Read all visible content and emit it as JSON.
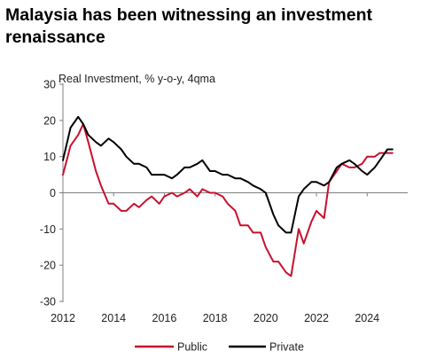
{
  "title": "Malaysia has been witnessing an investment renaissance",
  "chart_data": {
    "type": "line",
    "ylabel": "Real Investment,  % y-o-y, 4qma",
    "ylim": [
      -30,
      30
    ],
    "yticks": [
      30,
      20,
      10,
      0,
      -10,
      -20,
      -30
    ],
    "xlim": [
      2012,
      2025.6
    ],
    "xticks": [
      2012,
      2014,
      2016,
      2018,
      2020,
      2022,
      2024
    ],
    "grid": false,
    "legend_position": "bottom-center",
    "series": [
      {
        "name": "Public",
        "color": "#C8102E",
        "x": [
          2012.0,
          2012.3,
          2012.6,
          2012.8,
          2013.0,
          2013.3,
          2013.5,
          2013.8,
          2014.0,
          2014.3,
          2014.5,
          2014.8,
          2015.0,
          2015.3,
          2015.5,
          2015.8,
          2016.0,
          2016.3,
          2016.5,
          2016.8,
          2017.0,
          2017.3,
          2017.5,
          2017.8,
          2018.0,
          2018.3,
          2018.5,
          2018.8,
          2019.0,
          2019.3,
          2019.5,
          2019.8,
          2020.0,
          2020.3,
          2020.5,
          2020.8,
          2021.0,
          2021.3,
          2021.5,
          2021.8,
          2022.0,
          2022.3,
          2022.5,
          2022.8,
          2023.0,
          2023.3,
          2023.5,
          2023.8,
          2024.0,
          2024.3,
          2024.5,
          2024.8,
          2025.0
        ],
        "values": [
          5,
          13,
          16,
          19,
          14,
          6,
          2,
          -3,
          -3,
          -5,
          -5,
          -3,
          -4,
          -2,
          -1,
          -3,
          -1,
          0,
          -1,
          0,
          1,
          -1,
          1,
          0,
          0,
          -1,
          -3,
          -5,
          -9,
          -9,
          -11,
          -11,
          -15,
          -19,
          -19,
          -22,
          -23,
          -10,
          -14,
          -8,
          -5,
          -7,
          3,
          6,
          8,
          7,
          7,
          8,
          10,
          10,
          11,
          11,
          11
        ]
      },
      {
        "name": "Private",
        "color": "#000000",
        "x": [
          2012.0,
          2012.3,
          2012.6,
          2012.8,
          2013.0,
          2013.3,
          2013.5,
          2013.8,
          2014.0,
          2014.3,
          2014.5,
          2014.8,
          2015.0,
          2015.3,
          2015.5,
          2015.8,
          2016.0,
          2016.3,
          2016.5,
          2016.8,
          2017.0,
          2017.3,
          2017.5,
          2017.8,
          2018.0,
          2018.3,
          2018.5,
          2018.8,
          2019.0,
          2019.3,
          2019.5,
          2019.8,
          2020.0,
          2020.3,
          2020.5,
          2020.8,
          2021.0,
          2021.3,
          2021.5,
          2021.8,
          2022.0,
          2022.3,
          2022.5,
          2022.8,
          2023.0,
          2023.3,
          2023.5,
          2023.8,
          2024.0,
          2024.3,
          2024.5,
          2024.8,
          2025.0
        ],
        "values": [
          9,
          18,
          21,
          19,
          16,
          14,
          13,
          15,
          14,
          12,
          10,
          8,
          8,
          7,
          5,
          5,
          5,
          4,
          5,
          7,
          7,
          8,
          9,
          6,
          6,
          5,
          5,
          4,
          4,
          3,
          2,
          1,
          0,
          -6,
          -9,
          -11,
          -11,
          -1,
          1,
          3,
          3,
          2,
          3,
          7,
          8,
          9,
          8,
          6,
          5,
          7,
          9,
          12,
          12
        ]
      }
    ]
  }
}
